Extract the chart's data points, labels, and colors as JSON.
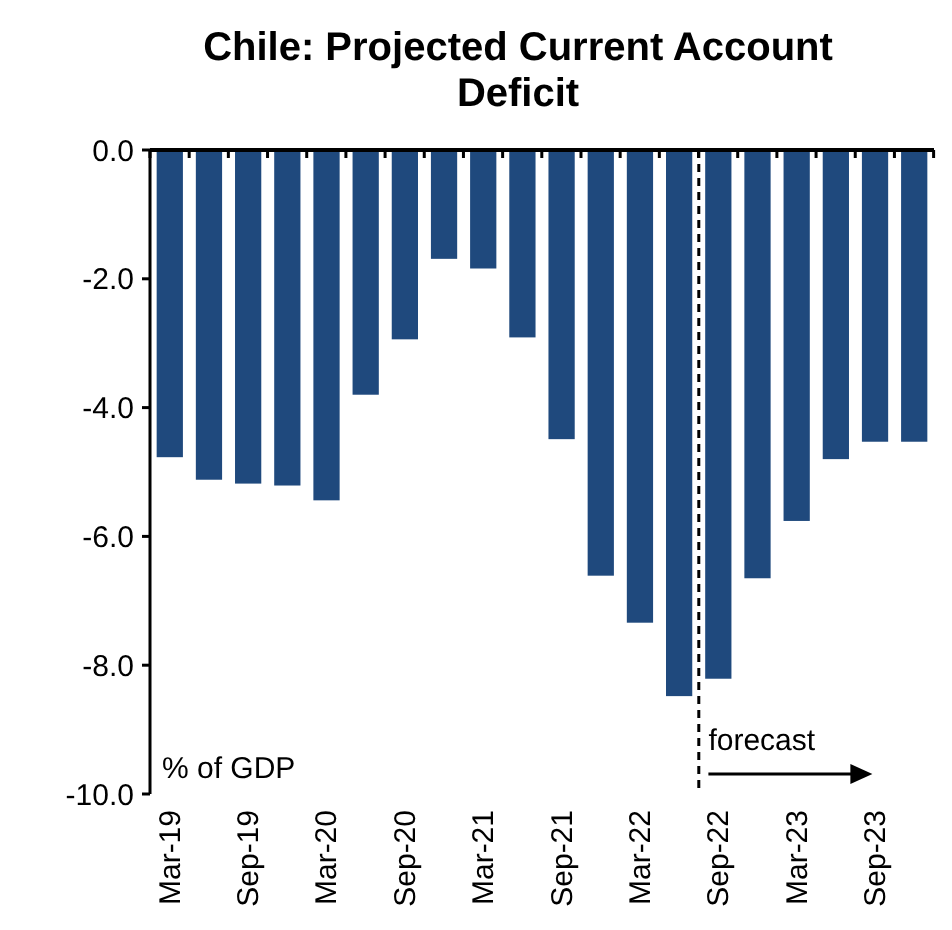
{
  "chart_data": {
    "type": "bar",
    "title": "Chile: Projected Current Account Deficit",
    "ylabel": "% of GDP",
    "categories": [
      "Mar-19",
      null,
      "Sep-19",
      null,
      "Mar-20",
      null,
      "Sep-20",
      null,
      "Mar-21",
      null,
      "Sep-21",
      null,
      "Mar-22",
      null,
      "Sep-22",
      null,
      "Mar-23",
      null,
      "Sep-23",
      null
    ],
    "values": [
      -4.77,
      -5.12,
      -5.18,
      -5.21,
      -5.44,
      -3.8,
      -2.94,
      -1.69,
      -1.84,
      -2.91,
      -4.49,
      -6.61,
      -7.34,
      -8.48,
      -8.21,
      -6.65,
      -5.76,
      -4.8,
      -4.53,
      -4.53
    ],
    "color": "#1f497d",
    "ylim": [
      -10,
      0
    ],
    "yticks": [
      {
        "value": -10,
        "label": "-10.0"
      },
      {
        "value": -8,
        "label": "-8.0"
      },
      {
        "value": -6,
        "label": "-6.0"
      },
      {
        "value": -4,
        "label": "-4.0"
      },
      {
        "value": -2,
        "label": "-2.0"
      },
      {
        "value": 0,
        "label": "0.0"
      }
    ],
    "annotations": [
      "forecast"
    ],
    "grid": false
  }
}
